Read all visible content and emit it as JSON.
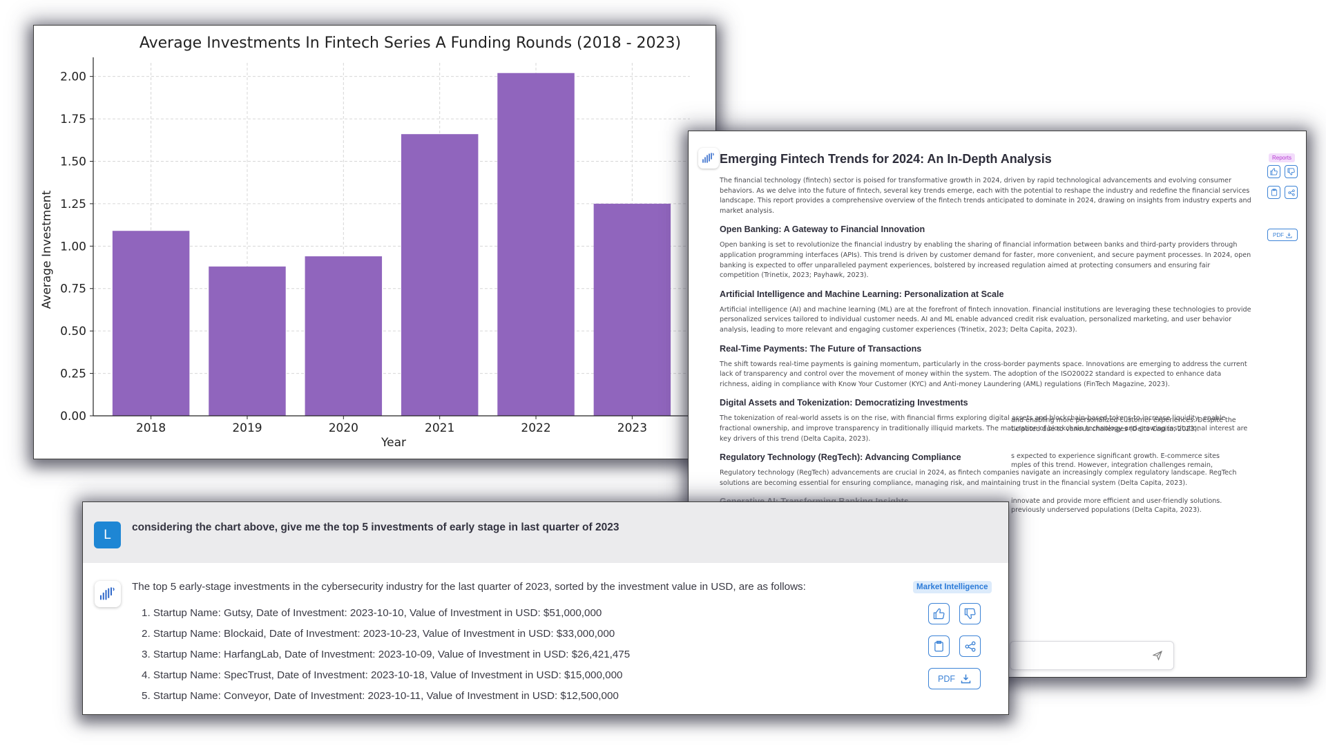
{
  "chart_data": {
    "type": "bar",
    "title": "Average Investments In Fintech Series A Funding Rounds (2018 - 2023)",
    "xlabel": "Year",
    "ylabel": "Average Investment",
    "categories": [
      "2018",
      "2019",
      "2020",
      "2021",
      "2022",
      "2023"
    ],
    "values": [
      1.09,
      0.88,
      0.94,
      1.66,
      2.02,
      1.25
    ],
    "ylim": [
      0,
      2.08
    ],
    "yticks": [
      "0.00",
      "0.25",
      "0.50",
      "0.75",
      "1.00",
      "1.25",
      "1.50",
      "1.75",
      "2.00"
    ],
    "bar_color": "#9065bd",
    "grid": true,
    "legend": "none"
  },
  "report": {
    "title": "Emerging Fintech Trends for 2024: An In-Depth Analysis",
    "tag": "Reports",
    "pdf_label": "PDF",
    "intro": "The financial technology (fintech) sector is poised for transformative growth in 2024, driven by rapid technological advancements and evolving consumer behaviors. As we delve into the future of fintech, several key trends emerge, each with the potential to reshape the industry and redefine the financial services landscape. This report provides a comprehensive overview of the fintech trends anticipated to dominate in 2024, drawing on insights from industry experts and market analysis.",
    "sections": [
      {
        "heading": "Open Banking: A Gateway to Financial Innovation",
        "text": "Open banking is set to revolutionize the financial industry by enabling the sharing of financial information between banks and third-party providers through application programming interfaces (APIs). This trend is driven by customer demand for faster, more convenient, and secure payment processes. In 2024, open banking is expected to offer unparalleled payment experiences, bolstered by increased regulation aimed at protecting consumers and ensuring fair competition (Trinetix, 2023; Payhawk, 2023)."
      },
      {
        "heading": "Artificial Intelligence and Machine Learning: Personalization at Scale",
        "text": "Artificial intelligence (AI) and machine learning (ML) are at the forefront of fintech innovation. Financial institutions are leveraging these technologies to provide personalized services tailored to individual customer needs. AI and ML enable advanced credit risk evaluation, personalized marketing, and user behavior analysis, leading to more relevant and engaging customer experiences (Trinetix, 2023; Delta Capita, 2023)."
      },
      {
        "heading": "Real-Time Payments: The Future of Transactions",
        "text": "The shift towards real-time payments is gaining momentum, particularly in the cross-border payments space. Innovations are emerging to address the current lack of transparency and control over the movement of money within the system. The adoption of the ISO20022 standard is expected to enhance data richness, aiding in compliance with Know Your Customer (KYC) and Anti-money Laundering (AML) regulations (FinTech Magazine, 2023)."
      },
      {
        "heading": "Digital Assets and Tokenization: Democratizing Investments",
        "text": "The tokenization of real-world assets is on the rise, with financial firms exploring digital assets and blockchain-based tokens to increase liquidity, enable fractional ownership, and improve transparency in traditionally illiquid markets. The maturation of blockchain technology and growing institutional interest are key drivers of this trend (Delta Capita, 2023)."
      },
      {
        "heading": "Regulatory Technology (RegTech): Advancing Compliance",
        "text": "Regulatory technology (RegTech) advancements are crucial in 2024, as fintech companies navigate an increasingly complex regulatory landscape. RegTech solutions are becoming essential for ensuring compliance, managing risk, and maintaining trust in the financial system (Delta Capita, 2023)."
      }
    ],
    "partial_heading": "Generative AI: Transforming Banking Insights",
    "partial_lines": [
      "and enabling more personalized customer experiences. Despite the",
      "ticipated due to various challenges (Delta Capita, 2023).",
      "s expected to experience significant growth. E-commerce sites",
      "mples of this trend. However, integration challenges remain,",
      "innovate and provide more efficient and user-friendly solutions.",
      "previously underserved populations (Delta Capita, 2023)."
    ]
  },
  "chat": {
    "user_initial": "L",
    "user_message": "considering the chart above, give me the top 5 investments of early stage in last quarter of 2023",
    "bot_intro": "The top 5 early-stage investments in the cybersecurity industry for the last quarter of 2023, sorted by the investment value in USD, are as follows:",
    "items": [
      "1. Startup Name: Gutsy, Date of Investment: 2023-10-10, Value of Investment in USD: $51,000,000",
      "2. Startup Name: Blockaid, Date of Investment: 2023-10-23, Value of Investment in USD: $33,000,000",
      "3. Startup Name: HarfangLab, Date of Investment: 2023-10-09, Value of Investment in USD: $26,421,475",
      "4. Startup Name: SpecTrust, Date of Investment: 2023-10-18, Value of Investment in USD: $15,000,000",
      "5. Startup Name: Conveyor, Date of Investment: 2023-10-11, Value of Investment in USD: $12,500,000"
    ],
    "tag": "Market Intelligence",
    "pdf_label": "PDF"
  }
}
